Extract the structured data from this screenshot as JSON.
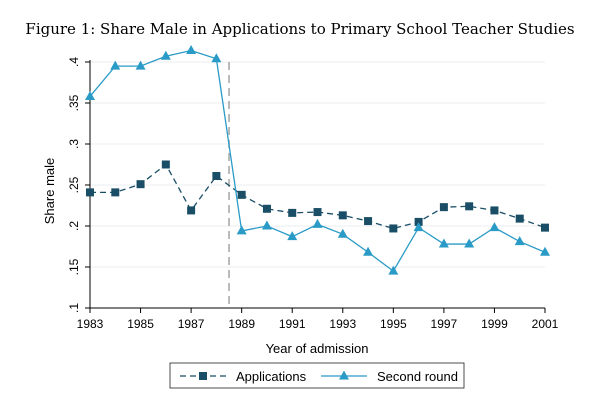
{
  "chart_data": {
    "type": "line",
    "title": "Figure 1: Share Male in Applications to Primary School Teacher Studies",
    "xlabel": "Year of admission",
    "ylabel": "Share male",
    "xlim": [
      1983,
      2001
    ],
    "ylim": [
      0.1,
      0.4
    ],
    "x_ticks": [
      1983,
      1985,
      1987,
      1989,
      1991,
      1993,
      1995,
      1997,
      1999,
      2001
    ],
    "x_tick_labels": [
      "1983",
      "1985",
      "1987",
      "1989",
      "1991",
      "1993",
      "1995",
      "1997",
      "1999",
      "2001"
    ],
    "y_ticks": [
      0.1,
      0.15,
      0.2,
      0.25,
      0.3,
      0.35,
      0.4
    ],
    "y_tick_labels": [
      ".1",
      ".15",
      ".2",
      ".25",
      ".3",
      ".35",
      ".4"
    ],
    "grid": "horizontal",
    "reference_line_x": 1988.5,
    "legend_position": "bottom",
    "series": [
      {
        "name": "Applications",
        "line_style": "dashed",
        "marker": "square",
        "color": "#1a4e66",
        "x": [
          1983,
          1984,
          1985,
          1986,
          1987,
          1988,
          1989,
          1990,
          1991,
          1992,
          1993,
          1994,
          1995,
          1996,
          1997,
          1998,
          1999,
          2000,
          2001
        ],
        "values": [
          0.241,
          0.241,
          0.251,
          0.275,
          0.219,
          0.261,
          0.238,
          0.221,
          0.216,
          0.217,
          0.213,
          0.206,
          0.197,
          0.205,
          0.223,
          0.224,
          0.219,
          0.209,
          0.198
        ]
      },
      {
        "name": "Second round",
        "line_style": "solid",
        "marker": "triangle",
        "color": "#2a9bc6",
        "x": [
          1983,
          1984,
          1985,
          1986,
          1987,
          1988,
          1989,
          1990,
          1991,
          1992,
          1993,
          1994,
          1995,
          1996,
          1997,
          1998,
          1999,
          2000,
          2001
        ],
        "values": [
          0.358,
          0.395,
          0.395,
          0.407,
          0.414,
          0.404,
          0.194,
          0.2,
          0.187,
          0.202,
          0.19,
          0.168,
          0.145,
          0.198,
          0.178,
          0.178,
          0.198,
          0.181,
          0.168
        ]
      }
    ]
  }
}
